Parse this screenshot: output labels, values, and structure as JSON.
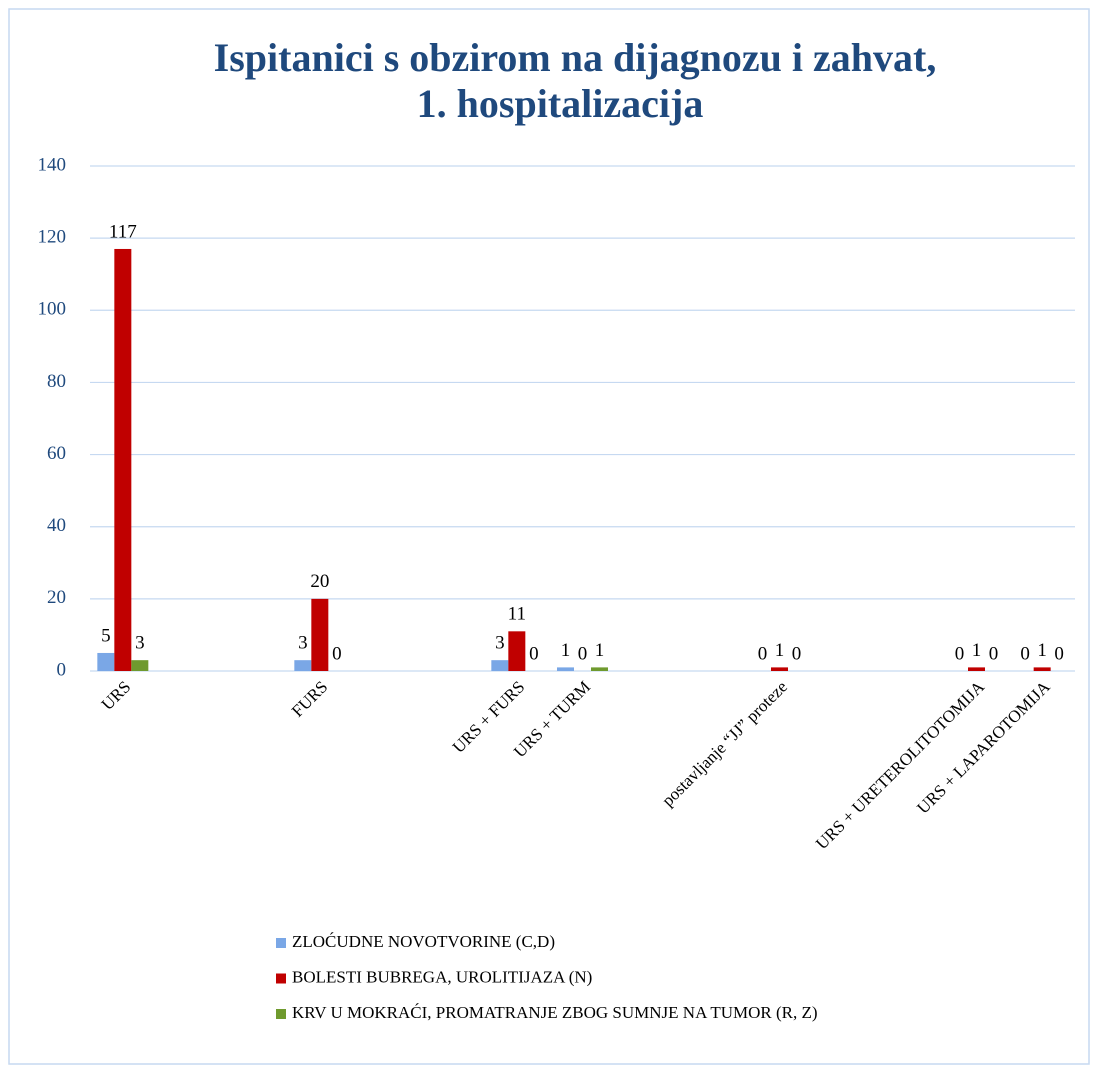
{
  "chart_data": {
    "type": "bar",
    "title": [
      "Ispitanici s obzirom na dijagnozu i zahvat,",
      "1. hospitalizacija"
    ],
    "categories": [
      "URS",
      null,
      null,
      "FURS",
      null,
      null,
      "URS + FURS",
      "URS + TURM",
      null,
      null,
      "postavljanje “JJ” proteze",
      null,
      null,
      "URS + URETEROLITOTOMIJA",
      "URS + LAPAROTOMIJA"
    ],
    "series": [
      {
        "name": "ZLOĆUDNE NOVOTVORINE (C,D)",
        "color": "#7aa7e6",
        "values": [
          5,
          null,
          null,
          3,
          null,
          null,
          3,
          1,
          null,
          null,
          0,
          null,
          null,
          0,
          0
        ]
      },
      {
        "name": "BOLESTI BUBREGA, UROLITIJAZA (N)",
        "color": "#c00000",
        "values": [
          117,
          null,
          null,
          20,
          null,
          null,
          11,
          0,
          null,
          null,
          1,
          null,
          null,
          1,
          1
        ]
      },
      {
        "name": "KRV U MOKRAĆI, PROMATRANJE ZBOG SUMNJE NA TUMOR (R, Z)",
        "color": "#6f9a2e",
        "values": [
          3,
          null,
          null,
          0,
          null,
          null,
          0,
          1,
          null,
          null,
          0,
          null,
          null,
          0,
          0
        ]
      }
    ],
    "ylim": [
      0,
      140
    ],
    "yticks": [
      0,
      20,
      40,
      60,
      80,
      100,
      120,
      140
    ],
    "grid": true,
    "legend": "bottom"
  }
}
